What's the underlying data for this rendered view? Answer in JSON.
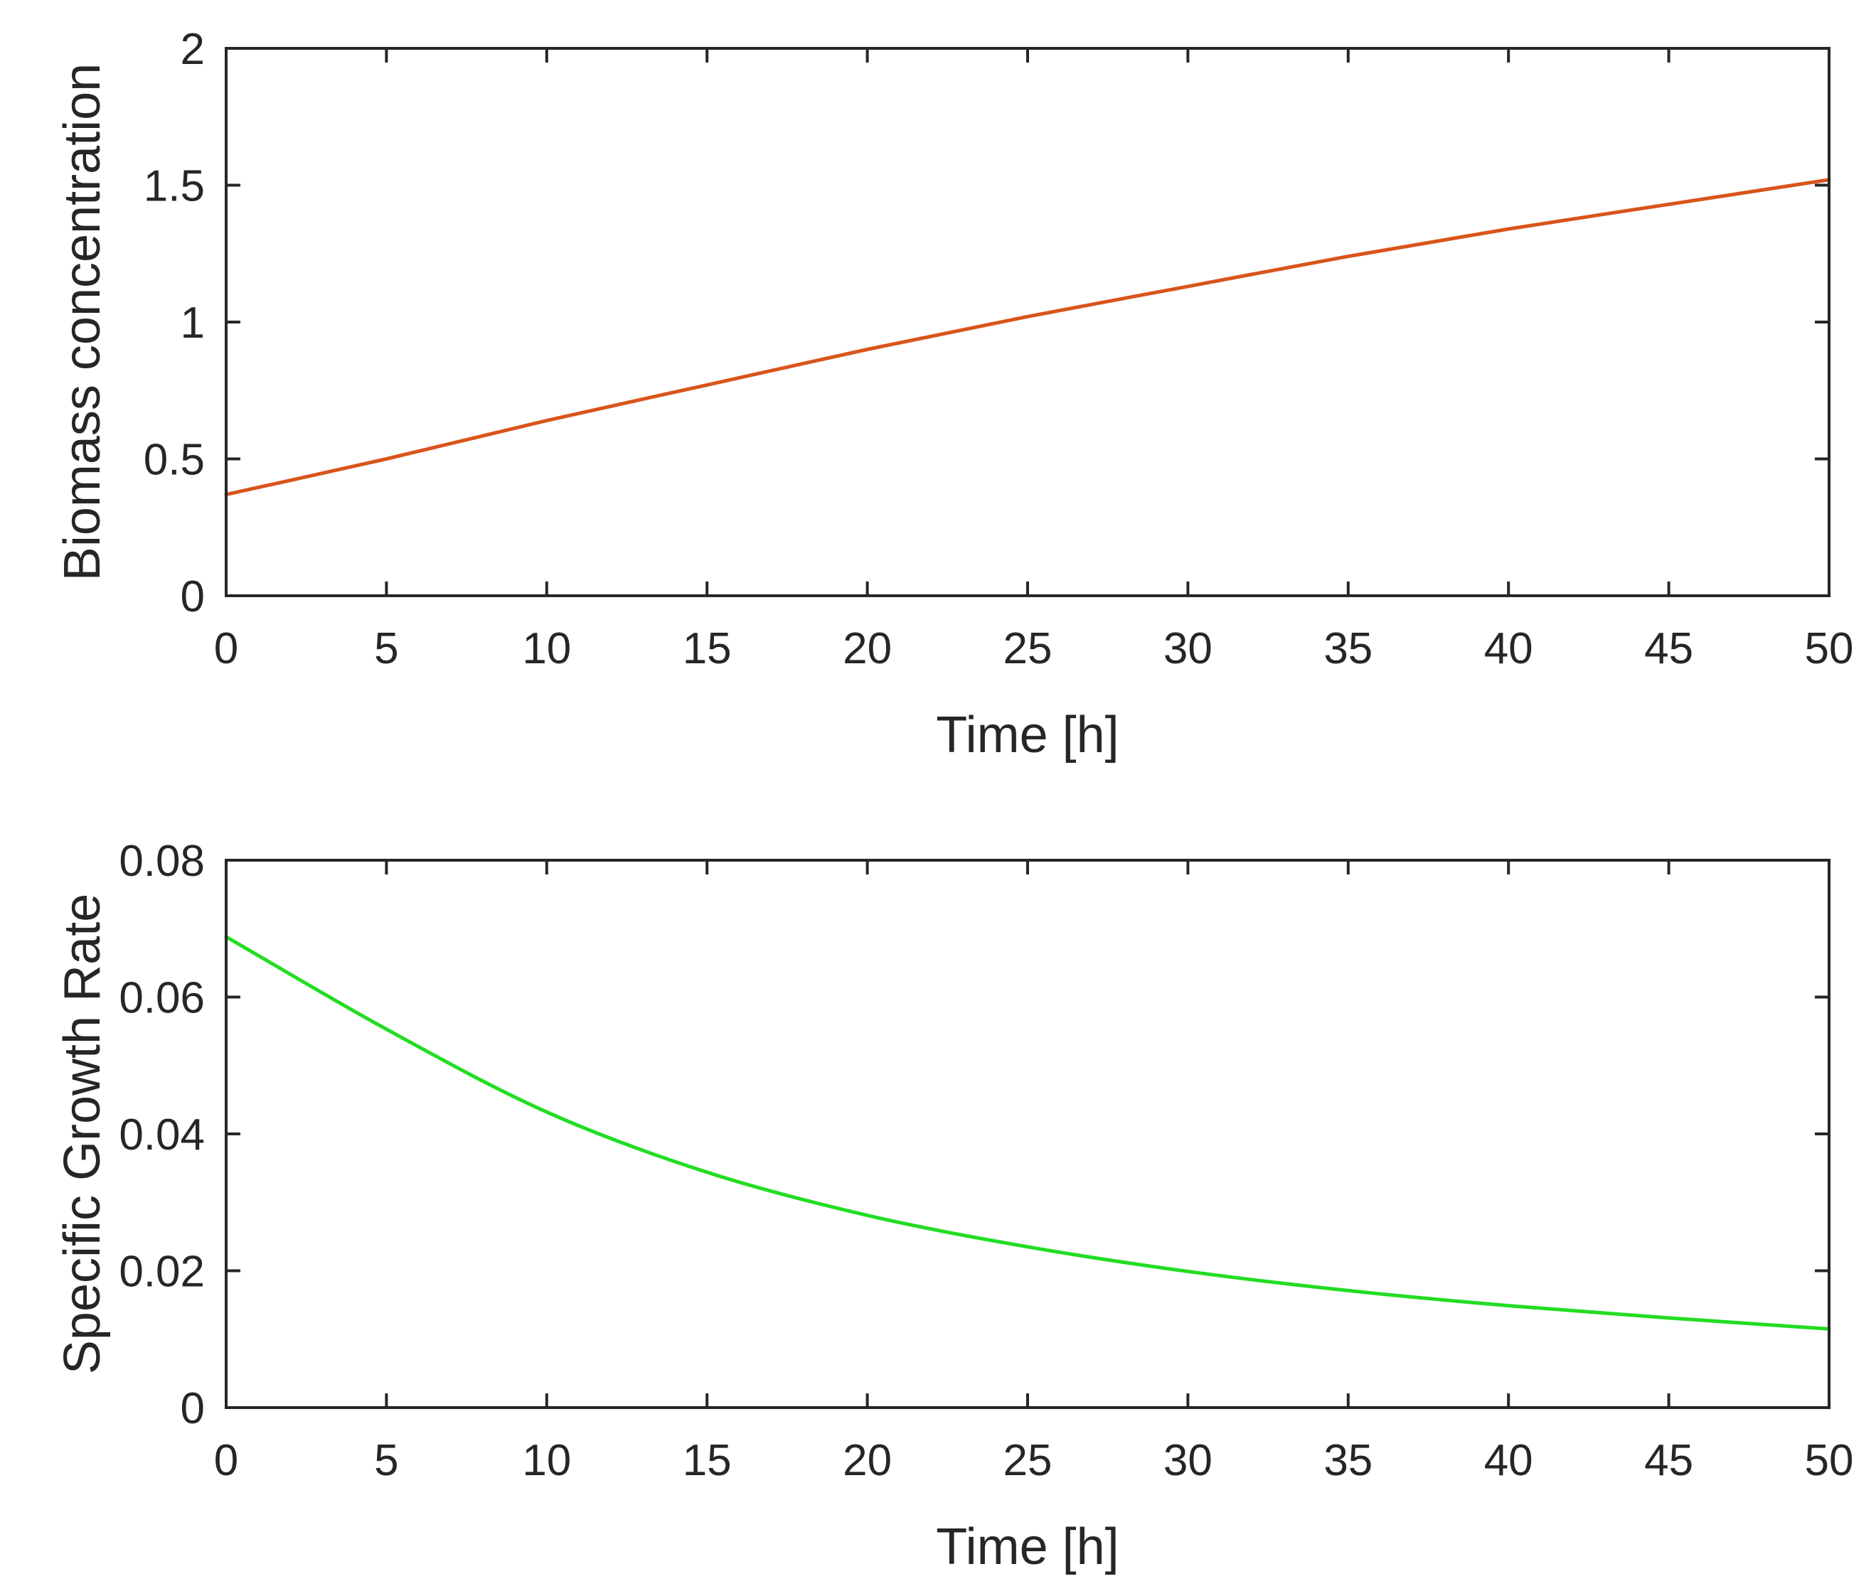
{
  "chart_data": [
    {
      "type": "line",
      "title": "",
      "xlabel": "Time [h]",
      "ylabel": "Biomass concentration",
      "xlim": [
        0,
        50
      ],
      "ylim": [
        0,
        2
      ],
      "xticks": [
        "0",
        "5",
        "10",
        "15",
        "20",
        "25",
        "30",
        "35",
        "40",
        "45",
        "50"
      ],
      "yticks": [
        "0",
        "0.5",
        "1",
        "1.5",
        "2"
      ],
      "xtick_values": [
        0,
        5,
        10,
        15,
        20,
        25,
        30,
        35,
        40,
        45,
        50
      ],
      "ytick_values": [
        0,
        0.5,
        1,
        1.5,
        2
      ],
      "grid": false,
      "series": [
        {
          "color": "#d9541a",
          "x": [
            0,
            5,
            10,
            15,
            20,
            25,
            30,
            35,
            40,
            45,
            50
          ],
          "y": [
            0.37,
            0.5,
            0.64,
            0.77,
            0.9,
            1.02,
            1.13,
            1.24,
            1.34,
            1.43,
            1.52
          ]
        }
      ]
    },
    {
      "type": "line",
      "title": "",
      "xlabel": "Time [h]",
      "ylabel": "Specific Growth Rate",
      "xlim": [
        0,
        50
      ],
      "ylim": [
        0,
        0.08
      ],
      "xticks": [
        "0",
        "5",
        "10",
        "15",
        "20",
        "25",
        "30",
        "35",
        "40",
        "45",
        "50"
      ],
      "yticks": [
        "0",
        "0.02",
        "0.04",
        "0.06",
        "0.08"
      ],
      "xtick_values": [
        0,
        5,
        10,
        15,
        20,
        25,
        30,
        35,
        40,
        45,
        50
      ],
      "ytick_values": [
        0,
        0.02,
        0.04,
        0.06,
        0.08
      ],
      "grid": false,
      "series": [
        {
          "color": "#22dd22",
          "x": [
            0,
            5,
            10,
            15,
            20,
            25,
            30,
            35,
            40,
            45,
            50
          ],
          "y": [
            0.0688,
            0.0553,
            0.0432,
            0.0344,
            0.0281,
            0.0235,
            0.0199,
            0.0171,
            0.0149,
            0.0131,
            0.0115
          ]
        }
      ]
    }
  ]
}
